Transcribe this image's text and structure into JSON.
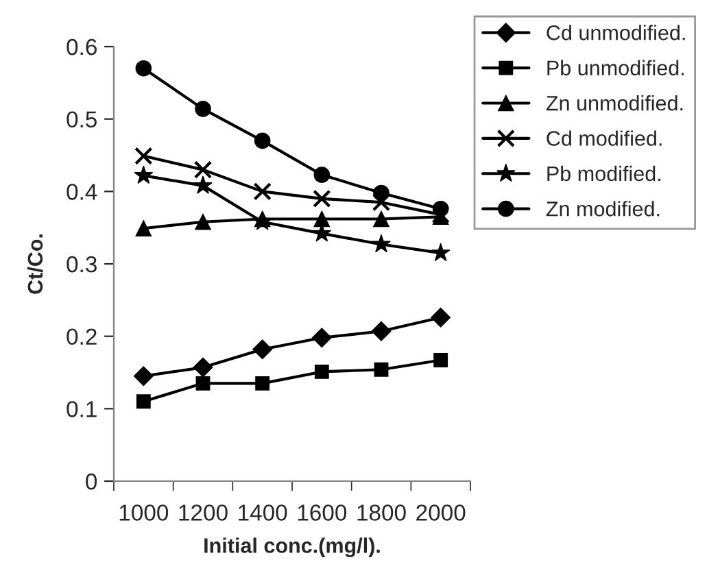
{
  "chart_data": {
    "type": "line",
    "xlabel": "Initial conc.(mg/l).",
    "ylabel": "Ct/Co.",
    "categories": [
      "1000",
      "1200",
      "1400",
      "1600",
      "1800",
      "2000"
    ],
    "ylim": [
      0,
      0.6
    ],
    "yticks": [
      0,
      0.1,
      0.2,
      0.3,
      0.4,
      0.5,
      0.6
    ],
    "grid": false,
    "legend": "right",
    "series": [
      {
        "name": "Cd unmodified.",
        "color": "#000000",
        "marker": "diamond",
        "values": [
          0.145,
          0.157,
          0.182,
          0.198,
          0.207,
          0.226
        ]
      },
      {
        "name": "Pb unmodified.",
        "color": "#000000",
        "marker": "square",
        "values": [
          0.11,
          0.135,
          0.135,
          0.151,
          0.154,
          0.167
        ]
      },
      {
        "name": "Zn unmodified.",
        "color": "#000000",
        "marker": "triangle",
        "values": [
          0.349,
          0.358,
          0.362,
          0.362,
          0.362,
          0.365
        ]
      },
      {
        "name": "Cd modified.",
        "color": "#000000",
        "marker": "cross",
        "values": [
          0.449,
          0.43,
          0.4,
          0.39,
          0.385,
          0.368
        ]
      },
      {
        "name": "Pb modified.",
        "color": "#000000",
        "marker": "star",
        "values": [
          0.422,
          0.408,
          0.358,
          0.342,
          0.327,
          0.315
        ]
      },
      {
        "name": "Zn modified.",
        "color": "#000000",
        "marker": "circle",
        "values": [
          0.57,
          0.514,
          0.47,
          0.423,
          0.398,
          0.376
        ]
      }
    ]
  }
}
